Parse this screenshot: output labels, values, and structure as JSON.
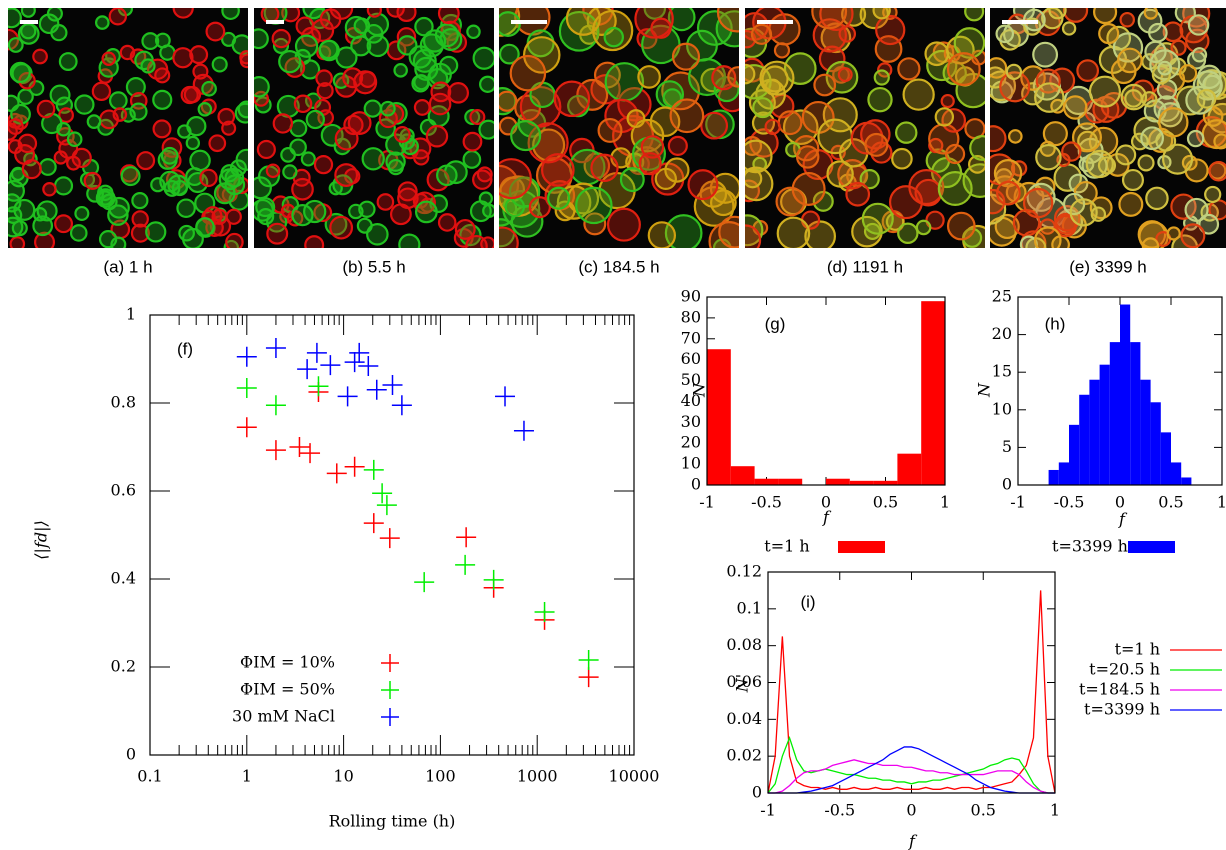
{
  "images": [
    {
      "caption": "(a) 1 h"
    },
    {
      "caption": "(b) 5.5 h"
    },
    {
      "caption": "(c) 184.5 h"
    },
    {
      "caption": "(d) 1191 h"
    },
    {
      "caption": "(e) 3399 h"
    }
  ],
  "chart_data": [
    {
      "type": "scatter",
      "annotation": "(f)",
      "xlabel": "Rolling time (h)",
      "ylabel": "⟨|fd|⟩",
      "log_x": true,
      "xlim": [
        0.1,
        10000
      ],
      "xticks": [
        0.1,
        1,
        10,
        100,
        1000,
        10000
      ],
      "ylim": [
        0,
        1
      ],
      "yticks": [
        0,
        0.2,
        0.4,
        0.6,
        0.8,
        1
      ],
      "series": [
        {
          "name": "ΦIM = 10%",
          "color": "#ff0000",
          "x": [
            1,
            2,
            3.5,
            4.5,
            5.5,
            8.5,
            13,
            20.5,
            30,
            184.5,
            355,
            1191,
            3399
          ],
          "values": [
            0.745,
            0.693,
            0.7,
            0.686,
            0.825,
            0.64,
            0.655,
            0.527,
            0.493,
            0.495,
            0.38,
            0.307,
            0.177
          ]
        },
        {
          "name": "ΦIM = 50%",
          "color": "#00ee00",
          "x": [
            1,
            2,
            5.5,
            20.5,
            25,
            28,
            68,
            180,
            355,
            1191,
            3399
          ],
          "values": [
            0.834,
            0.795,
            0.838,
            0.648,
            0.595,
            0.568,
            0.393,
            0.432,
            0.398,
            0.325,
            0.216
          ]
        },
        {
          "name": "30 mM NaCl",
          "color": "#0000ff",
          "x": [
            1,
            2,
            4.2,
            5.3,
            7.3,
            11,
            13,
            14.5,
            18,
            22,
            32,
            40,
            465,
            730
          ],
          "values": [
            0.905,
            0.925,
            0.877,
            0.914,
            0.886,
            0.815,
            0.893,
            0.914,
            0.884,
            0.83,
            0.841,
            0.795,
            0.815,
            0.737
          ]
        }
      ]
    },
    {
      "type": "histogram",
      "annotation": "(g)",
      "xlabel": "f",
      "ylabel": "N",
      "xlim": [
        -1,
        1
      ],
      "xticks": [
        -1,
        -0.5,
        0,
        0.5,
        1
      ],
      "ylim": [
        0,
        90
      ],
      "yticks": [
        0,
        10,
        20,
        30,
        40,
        50,
        60,
        70,
        80,
        90
      ],
      "bins": [
        -1,
        -0.8,
        -0.6,
        -0.4,
        -0.2,
        0,
        0.2,
        0.4,
        0.6,
        0.8,
        1
      ],
      "series": [
        {
          "name": "t=1 h",
          "color": "#ff0000",
          "values": [
            65,
            9,
            3,
            3,
            0,
            3,
            2,
            2,
            15,
            88
          ]
        }
      ]
    },
    {
      "type": "histogram",
      "annotation": "(h)",
      "xlabel": "f",
      "ylabel": "N",
      "xlim": [
        -1,
        1
      ],
      "xticks": [
        -1,
        -0.5,
        0,
        0.5,
        1
      ],
      "ylim": [
        0,
        25
      ],
      "yticks": [
        0,
        5,
        10,
        15,
        20,
        25
      ],
      "bins": [
        -0.7,
        -0.6,
        -0.5,
        -0.4,
        -0.3,
        -0.2,
        -0.1,
        0,
        0.1,
        0.2,
        0.3,
        0.4,
        0.5,
        0.6,
        0.7
      ],
      "series": [
        {
          "name": "t=3399 h",
          "color": "#0000ff",
          "values": [
            2,
            3,
            8,
            12,
            14,
            16,
            19,
            24,
            19,
            14,
            11,
            7,
            3,
            1
          ]
        }
      ]
    },
    {
      "type": "line",
      "annotation": "(i)",
      "xlabel": "f",
      "ylabel": "N'",
      "xlim": [
        -1,
        1
      ],
      "xticks": [
        -1,
        -0.5,
        0,
        0.5,
        1
      ],
      "ylim": [
        0,
        0.12
      ],
      "yticks": [
        0,
        0.02,
        0.04,
        0.06,
        0.08,
        0.1,
        0.12
      ],
      "x": [
        -1,
        -0.95,
        -0.9,
        -0.85,
        -0.8,
        -0.75,
        -0.7,
        -0.65,
        -0.6,
        -0.55,
        -0.5,
        -0.45,
        -0.4,
        -0.35,
        -0.3,
        -0.25,
        -0.2,
        -0.15,
        -0.1,
        -0.05,
        0,
        0.05,
        0.1,
        0.15,
        0.2,
        0.25,
        0.3,
        0.35,
        0.4,
        0.45,
        0.5,
        0.55,
        0.6,
        0.65,
        0.7,
        0.75,
        0.8,
        0.85,
        0.9,
        0.95,
        1
      ],
      "series": [
        {
          "name": "t=1 h",
          "color": "#ff0000",
          "values": [
            0,
            0.02,
            0.085,
            0.02,
            0.006,
            0.004,
            0.003,
            0.003,
            0.002,
            0.003,
            0.002,
            0.002,
            0.003,
            0.002,
            0.002,
            0.003,
            0.002,
            0.002,
            0.003,
            0.002,
            0.002,
            0.002,
            0.003,
            0.002,
            0.002,
            0.003,
            0.002,
            0.003,
            0.003,
            0.002,
            0.003,
            0.003,
            0.004,
            0.005,
            0.006,
            0.01,
            0.015,
            0.03,
            0.11,
            0.02,
            0
          ]
        },
        {
          "name": "t=20.5 h",
          "color": "#00ee00",
          "values": [
            0,
            0.005,
            0.02,
            0.03,
            0.018,
            0.012,
            0.011,
            0.012,
            0.013,
            0.012,
            0.011,
            0.01,
            0.01,
            0.009,
            0.008,
            0.008,
            0.007,
            0.007,
            0.006,
            0.006,
            0.005,
            0.006,
            0.006,
            0.007,
            0.007,
            0.008,
            0.009,
            0.01,
            0.011,
            0.012,
            0.013,
            0.015,
            0.016,
            0.018,
            0.019,
            0.018,
            0.012,
            0.005,
            0.001,
            0,
            0
          ]
        },
        {
          "name": "t=184.5 h",
          "color": "#ee00ee",
          "values": [
            0,
            0,
            0.001,
            0.004,
            0.008,
            0.011,
            0.012,
            0.012,
            0.013,
            0.015,
            0.016,
            0.017,
            0.018,
            0.017,
            0.016,
            0.016,
            0.015,
            0.015,
            0.015,
            0.014,
            0.014,
            0.013,
            0.012,
            0.012,
            0.011,
            0.011,
            0.01,
            0.01,
            0.01,
            0.01,
            0.01,
            0.011,
            0.012,
            0.012,
            0.012,
            0.01,
            0.006,
            0.003,
            0.001,
            0,
            0
          ]
        },
        {
          "name": "t=3399 h",
          "color": "#0000ff",
          "values": [
            0,
            0,
            0,
            0,
            0,
            0.0005,
            0.001,
            0.002,
            0.003,
            0.004,
            0.006,
            0.008,
            0.01,
            0.012,
            0.014,
            0.016,
            0.018,
            0.021,
            0.023,
            0.025,
            0.025,
            0.024,
            0.022,
            0.02,
            0.018,
            0.016,
            0.014,
            0.012,
            0.01,
            0.007,
            0.005,
            0.003,
            0.002,
            0.001,
            0.0005,
            0,
            0,
            0,
            0,
            0,
            0
          ]
        }
      ]
    }
  ]
}
